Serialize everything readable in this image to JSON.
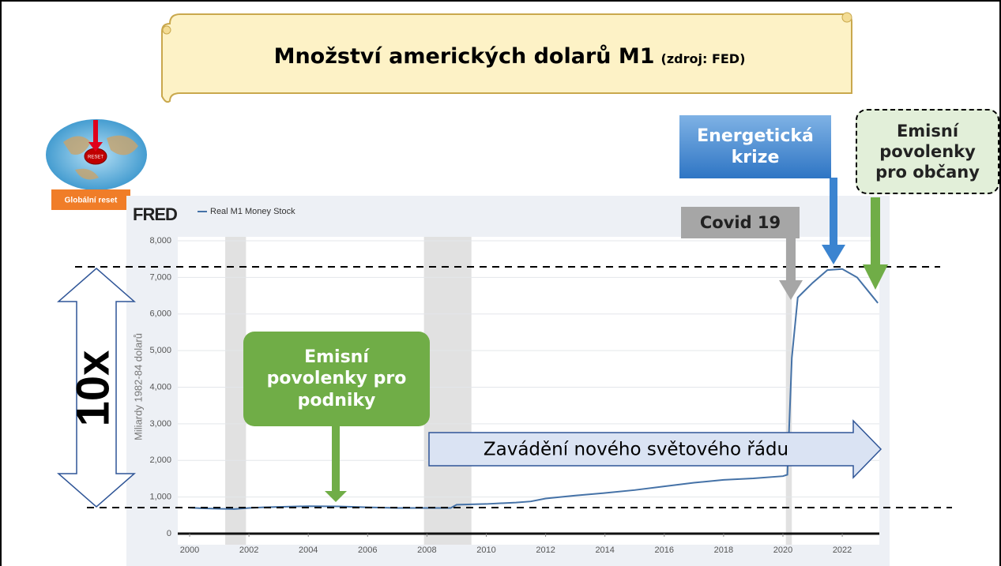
{
  "chart_data": {
    "type": "line",
    "title": "Množství amerických dolarů M1",
    "title_note": "(zdroj: FED)",
    "logo": "FRED",
    "y_label": "Miliardy 1982-84 dolarů",
    "x": [
      2000,
      2000.5,
      2001,
      2001.5,
      2002,
      2002.5,
      2003,
      2004,
      2005,
      2006,
      2007,
      2008,
      2008.8,
      2009,
      2010,
      2011,
      2011.5,
      2012,
      2013,
      2014,
      2015,
      2016,
      2017,
      2018,
      2019,
      2020,
      2020.15,
      2020.3,
      2020.5,
      2021,
      2021.5,
      2022,
      2022.5,
      2023,
      2023.2
    ],
    "series": [
      {
        "name": "Real M1 Money Stock",
        "color": "#4572a7",
        "values": [
          710,
          690,
          680,
          670,
          700,
          720,
          730,
          750,
          745,
          720,
          700,
          700,
          700,
          790,
          810,
          850,
          880,
          960,
          1040,
          1110,
          1190,
          1290,
          1390,
          1470,
          1510,
          1570,
          1610,
          4800,
          6450,
          6850,
          7200,
          7230,
          7000,
          6500,
          6300
        ]
      }
    ],
    "recessions": [
      [
        2001.2,
        2001.9
      ],
      [
        2007.9,
        2009.5
      ],
      [
        2020.1,
        2020.3
      ]
    ],
    "xlim": [
      1999.6,
      2023.25
    ],
    "ylim": [
      0,
      8000
    ],
    "xticks": [
      2000,
      2002,
      2004,
      2006,
      2008,
      2010,
      2012,
      2014,
      2016,
      2018,
      2020,
      2022
    ],
    "yticks": [
      0,
      {
        "value": 1000,
        "label": "1,000"
      },
      {
        "value": 2000,
        "label": "2,000"
      },
      {
        "value": 3000,
        "label": "3,000"
      },
      {
        "value": 4000,
        "label": "4,000"
      },
      {
        "value": 5000,
        "label": "5,000"
      },
      {
        "value": 6000,
        "label": "6,000"
      },
      {
        "value": 7000,
        "label": "7,000"
      },
      {
        "value": 8000,
        "label": "8,000"
      }
    ],
    "grid": true,
    "annotations": {
      "reset_button": "RESET",
      "reset": "Globální reset",
      "covid": "Covid 19",
      "energy": "Energetická krize",
      "citizens": "Emisní povolenky pro občany",
      "companies": "Emisní povolenky pro podniky",
      "order": "Zavádění nového světového řádu",
      "growth": "10x"
    }
  }
}
